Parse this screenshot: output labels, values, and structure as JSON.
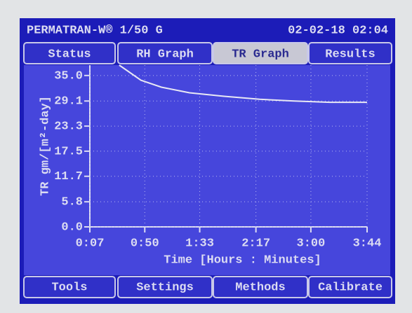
{
  "header": {
    "device": "PERMATRAN-W® 1/50 G",
    "datetime": "02-02-18 02:04"
  },
  "tabs": [
    "Status",
    "RH Graph",
    "TR Graph",
    "Results"
  ],
  "active_tab": "TR Graph",
  "footer_buttons": [
    "Tools",
    "Settings",
    "Methods",
    "Calibrate"
  ],
  "chart_data": {
    "type": "line",
    "x_label": "Time [Hours : Minutes]",
    "y_label": "TR gm/[m²-day]",
    "x": [
      30,
      47,
      63,
      85,
      112,
      140,
      167,
      195,
      224
    ],
    "series": [
      {
        "color": "#e8e8f4",
        "values": [
          37.4,
          33.9,
          32.3,
          31.0,
          30.2,
          29.5,
          29.1,
          28.8,
          28.8
        ]
      }
    ],
    "xlim": [
      7,
      224
    ],
    "ylim": [
      0,
      37.4
    ],
    "xticks": [
      {
        "value": 7,
        "label": "0:07"
      },
      {
        "value": 50,
        "label": "0:50"
      },
      {
        "value": 93,
        "label": "1:33"
      },
      {
        "value": 137,
        "label": "2:17"
      },
      {
        "value": 180,
        "label": "3:00"
      },
      {
        "value": 224,
        "label": "3:44"
      }
    ],
    "yticks": [
      {
        "value": 0,
        "label": "0.0"
      },
      5.8,
      11.7,
      17.5,
      23.3,
      29.1,
      {
        "value": 35,
        "label": "35.0"
      }
    ],
    "grid": true
  }
}
